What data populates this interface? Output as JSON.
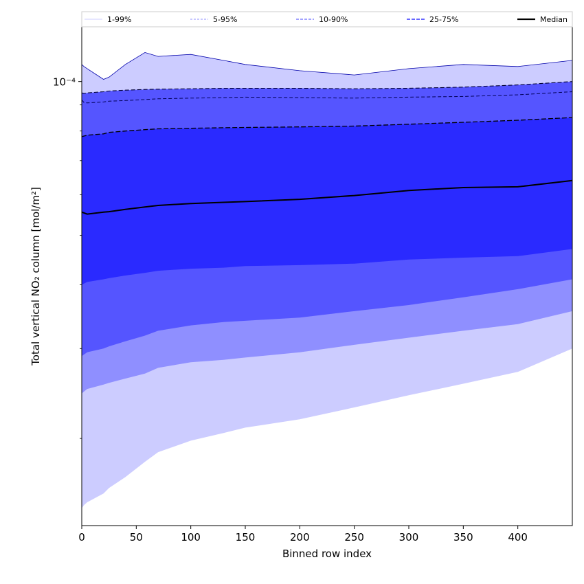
{
  "chart_data": {
    "type": "area",
    "title": "",
    "xlabel": "Binned row index",
    "ylabel": "Total vertical NO₂ column [mol/m²]",
    "yscale": "log",
    "xlim": [
      0,
      450
    ],
    "ylim": [
      1.35e-05,
      0.000128
    ],
    "x_ticks": [
      0,
      50,
      100,
      150,
      200,
      250,
      300,
      350,
      400
    ],
    "y_tick_label_value": 0.0001,
    "y_tick_label_text": "10⁻⁴",
    "y_minor_ticks": [
      2e-05,
      3e-05,
      4e-05,
      5e-05,
      6e-05,
      7e-05,
      8e-05,
      9e-05
    ],
    "legend_position": "top, above plot",
    "legend": [
      "1-99%",
      "5-95%",
      "10-90%",
      "25-75%",
      "Median"
    ],
    "x": [
      0,
      2,
      5,
      20,
      25,
      40,
      58,
      70,
      100,
      130,
      150,
      200,
      250,
      300,
      350,
      400,
      450
    ],
    "series": [
      {
        "name": "1-99%",
        "color": "#ccccff",
        "lower": [
          1.46e-05,
          1.48e-05,
          1.5e-05,
          1.56e-05,
          1.6e-05,
          1.68e-05,
          1.8e-05,
          1.88e-05,
          1.98e-05,
          2.05e-05,
          2.1e-05,
          2.18e-05,
          2.3e-05,
          2.43e-05,
          2.56e-05,
          2.7e-05,
          3e-05
        ],
        "upper": [
          0.000108,
          0.000107,
          0.000106,
          0.000101,
          0.000102,
          0.000108,
          0.000114,
          0.000112,
          0.000113,
          0.00011,
          0.000108,
          0.000105,
          0.000103,
          0.000106,
          0.000108,
          0.000107,
          0.00011
        ]
      },
      {
        "name": "5-95%",
        "color": "#8f8fff",
        "lower": [
          2.45e-05,
          2.47e-05,
          2.5e-05,
          2.55e-05,
          2.57e-05,
          2.62e-05,
          2.68e-05,
          2.75e-05,
          2.82e-05,
          2.85e-05,
          2.88e-05,
          2.95e-05,
          3.05e-05,
          3.15e-05,
          3.25e-05,
          3.35e-05,
          3.55e-05
        ]
      },
      {
        "name": "10-90%",
        "color": "#5555ff",
        "lower": [
          2.9e-05,
          2.92e-05,
          2.95e-05,
          3e-05,
          3.03e-05,
          3.1e-05,
          3.18e-05,
          3.25e-05,
          3.33e-05,
          3.38e-05,
          3.4e-05,
          3.45e-05,
          3.55e-05,
          3.65e-05,
          3.78e-05,
          3.92e-05,
          4.1e-05
        ],
        "upper": [
          9.5e-05,
          9.48e-05,
          9.5e-05,
          9.55e-05,
          9.58e-05,
          9.62e-05,
          9.65e-05,
          9.66e-05,
          9.68e-05,
          9.7e-05,
          9.7e-05,
          9.7e-05,
          9.68e-05,
          9.7e-05,
          9.75e-05,
          9.85e-05,
          0.0001
        ]
      },
      {
        "name": "25-75%",
        "color": "#2a2aff",
        "lower": [
          4e-05,
          4.02e-05,
          4.05e-05,
          4.1e-05,
          4.12e-05,
          4.17e-05,
          4.22e-05,
          4.26e-05,
          4.3e-05,
          4.32e-05,
          4.35e-05,
          4.37e-05,
          4.4e-05,
          4.48e-05,
          4.52e-05,
          4.55e-05,
          4.7e-05
        ],
        "upper": [
          7.8e-05,
          7.82e-05,
          7.85e-05,
          7.9e-05,
          7.95e-05,
          8e-05,
          8.05e-05,
          8.08e-05,
          8.1e-05,
          8.12e-05,
          8.13e-05,
          8.15e-05,
          8.18e-05,
          8.25e-05,
          8.32e-05,
          8.4e-05,
          8.5e-05
        ]
      },
      {
        "name": "Median",
        "color": "#000000",
        "values": [
          5.55e-05,
          5.53e-05,
          5.5e-05,
          5.55e-05,
          5.56e-05,
          5.62e-05,
          5.68e-05,
          5.72e-05,
          5.77e-05,
          5.8e-05,
          5.82e-05,
          5.88e-05,
          5.98e-05,
          6.12e-05,
          6.2e-05,
          6.22e-05,
          6.4e-05
        ]
      }
    ],
    "upper_5_95": [
      9.2e-05,
      9.1e-05,
      9.08e-05,
      9.12e-05,
      9.15e-05,
      9.18e-05,
      9.22e-05,
      9.25e-05,
      9.28e-05,
      9.3e-05,
      9.32e-05,
      9.3e-05,
      9.28e-05,
      9.32e-05,
      9.35e-05,
      9.42e-05,
      9.55e-05
    ]
  }
}
